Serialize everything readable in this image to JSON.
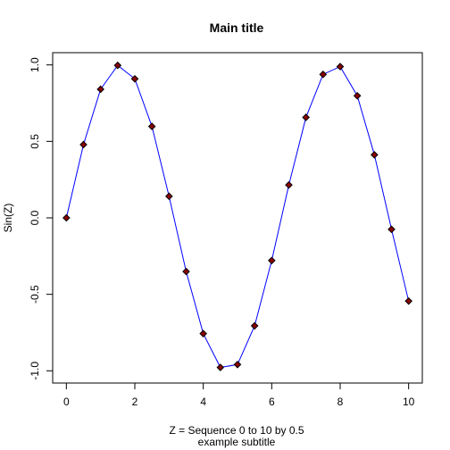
{
  "chart_data": {
    "type": "line",
    "title": "Main title",
    "subtitle": "example subtitle",
    "xlabel": "Z = Sequence 0 to 10 by 0.5",
    "ylabel": "Sin(Z)",
    "xlim": [
      -0.4,
      10.4
    ],
    "ylim": [
      -1.08,
      1.08
    ],
    "x_ticks": [
      0,
      2,
      4,
      6,
      8,
      10
    ],
    "x_tick_labels": [
      "0",
      "2",
      "4",
      "6",
      "8",
      "10"
    ],
    "y_ticks": [
      -1.0,
      -0.5,
      0.0,
      0.5,
      1.0
    ],
    "y_tick_labels": [
      "-1.0",
      "-0.5",
      "0.0",
      "0.5",
      "1.0"
    ],
    "grid": false,
    "legend": "none",
    "series": [
      {
        "x": [
          0,
          0.5,
          1,
          1.5,
          2,
          2.5,
          3,
          3.5,
          4,
          4.5,
          5,
          5.5,
          6,
          6.5,
          7,
          7.5,
          8,
          8.5,
          9,
          9.5,
          10
        ],
        "y": [
          0,
          0.479,
          0.841,
          0.997,
          0.909,
          0.598,
          0.141,
          -0.351,
          -0.757,
          -0.978,
          -0.959,
          -0.706,
          -0.279,
          0.215,
          0.657,
          0.938,
          0.989,
          0.798,
          0.412,
          -0.075,
          -0.544
        ],
        "line_color": "#0000ff",
        "marker_fill": "#8b0000",
        "marker_edge": "#000000",
        "marker": "diamond"
      }
    ]
  }
}
